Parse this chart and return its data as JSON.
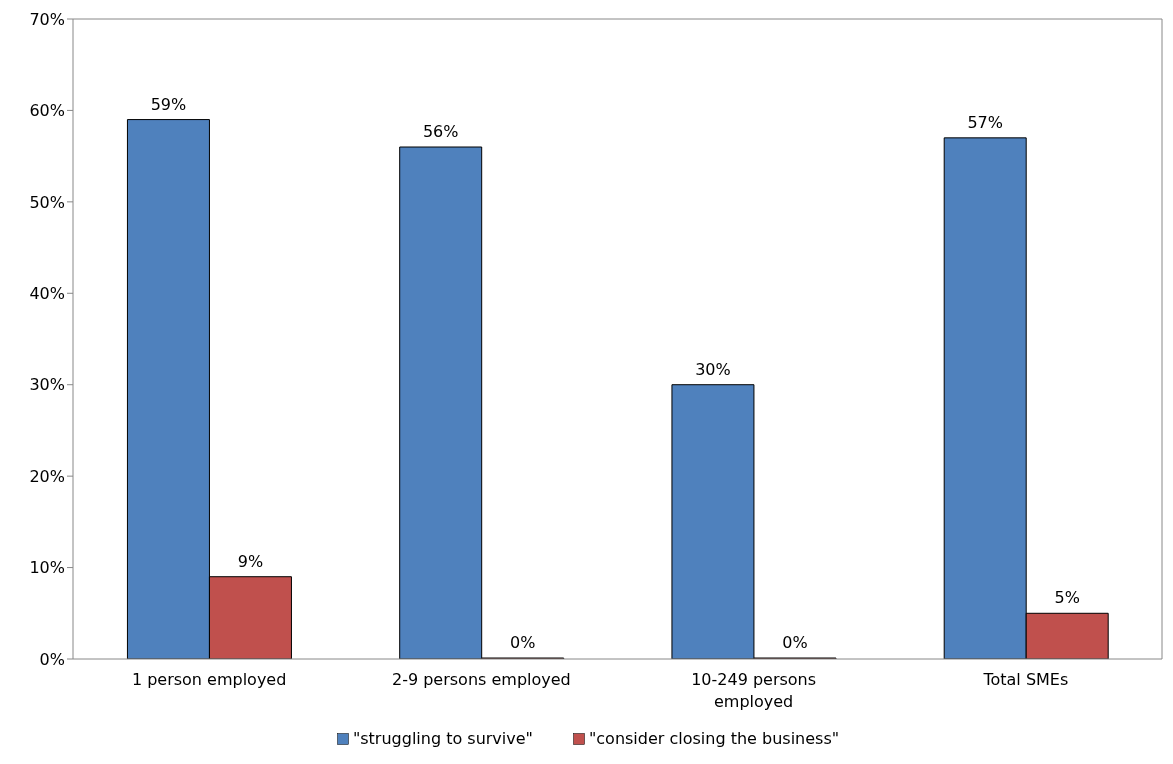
{
  "chart_data": {
    "type": "bar",
    "categories": [
      "1 person employed",
      "2-9 persons employed",
      "10-249 persons employed",
      "Total SMEs"
    ],
    "series": [
      {
        "name": "\"struggling to survive\"",
        "color": "#4f81bd",
        "values": [
          59,
          56,
          30,
          57
        ],
        "value_labels": [
          "59%",
          "56%",
          "30%",
          "57%"
        ]
      },
      {
        "name": "\"consider closing the business\"",
        "color": "#c0504d",
        "values": [
          9,
          0,
          0,
          5
        ],
        "value_labels": [
          "9%",
          "0%",
          "0%",
          "5%"
        ]
      }
    ],
    "ylim": [
      0,
      70
    ],
    "yticks": [
      {
        "value": 0,
        "label": "0%"
      },
      {
        "value": 10,
        "label": "10%"
      },
      {
        "value": 20,
        "label": "20%"
      },
      {
        "value": 30,
        "label": "30%"
      },
      {
        "value": 40,
        "label": "40%"
      },
      {
        "value": 50,
        "label": "50%"
      },
      {
        "value": 60,
        "label": "60%"
      },
      {
        "value": 70,
        "label": "70%"
      }
    ],
    "grid": false,
    "legend": "bottom"
  }
}
